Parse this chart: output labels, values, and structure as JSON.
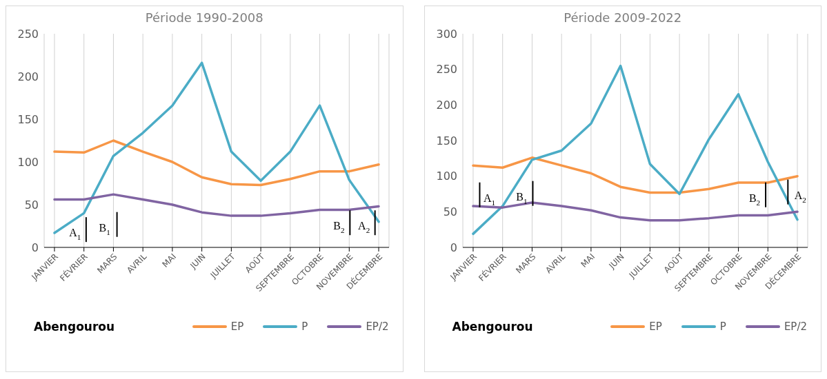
{
  "chart_data": [
    {
      "type": "line",
      "title": "Période 1990-2008",
      "categories": [
        "JANVIER",
        "FÉVRIER",
        "MARS",
        "AVRIL",
        "MAI",
        "JUIN",
        "JUILLET",
        "AOÛT",
        "SEPTEMBRE",
        "OCTOBRE",
        "NOVEMBRE",
        "DÉCEMBRE"
      ],
      "series": [
        {
          "name": "EP",
          "color": "#f79646",
          "values": [
            112,
            111,
            125,
            112,
            100,
            82,
            74,
            73,
            80,
            89,
            89,
            97
          ]
        },
        {
          "name": "P",
          "color": "#4bacc6",
          "values": [
            17,
            40,
            107,
            134,
            166,
            216,
            112,
            78,
            112,
            166,
            79,
            30
          ]
        },
        {
          "name": "EP/2",
          "color": "#8064a2",
          "values": [
            56,
            56,
            62,
            56,
            50,
            41,
            37,
            37,
            40,
            44,
            44,
            48
          ]
        }
      ],
      "ylim": [
        0,
        250
      ],
      "yticks": [
        0,
        50,
        100,
        150,
        200,
        250
      ],
      "grid": "x",
      "legend": "bottom right",
      "marker": "none",
      "line_style": "solid",
      "annotations": [
        "Abengourou",
        "A$_{1}$",
        "B$_{1}$",
        "B$_{2}$",
        "A$_{2}$"
      ]
    },
    {
      "type": "line",
      "title": "Période 2009-2022",
      "categories": [
        "JANVIER",
        "FÉVRIER",
        "MARS",
        "AVRIL",
        "MAI",
        "JUIN",
        "JUILLET",
        "AOÛT",
        "SEPTEMBRE",
        "OCTOBRE",
        "NOVEMBRE",
        "DÉCEMBRE"
      ],
      "series": [
        {
          "name": "EP",
          "color": "#f79646",
          "values": [
            115,
            112,
            126,
            115,
            104,
            85,
            77,
            77,
            82,
            91,
            91,
            100
          ]
        },
        {
          "name": "P",
          "color": "#4bacc6",
          "values": [
            19,
            58,
            123,
            136,
            174,
            255,
            117,
            75,
            152,
            215,
            120,
            39
          ]
        },
        {
          "name": "EP/2",
          "color": "#8064a2",
          "values": [
            58,
            56,
            63,
            58,
            52,
            42,
            38,
            38,
            41,
            45,
            45,
            50
          ]
        }
      ],
      "ylim": [
        0,
        300
      ],
      "yticks": [
        0,
        50,
        100,
        150,
        200,
        250,
        300
      ],
      "grid": "x",
      "legend": "bottom right",
      "marker": "none",
      "line_style": "solid",
      "annotations": [
        "Abengourou",
        "A$_{1}$",
        "B$_{1}$",
        "B$_{2}$",
        "A$_{2}$"
      ]
    }
  ]
}
